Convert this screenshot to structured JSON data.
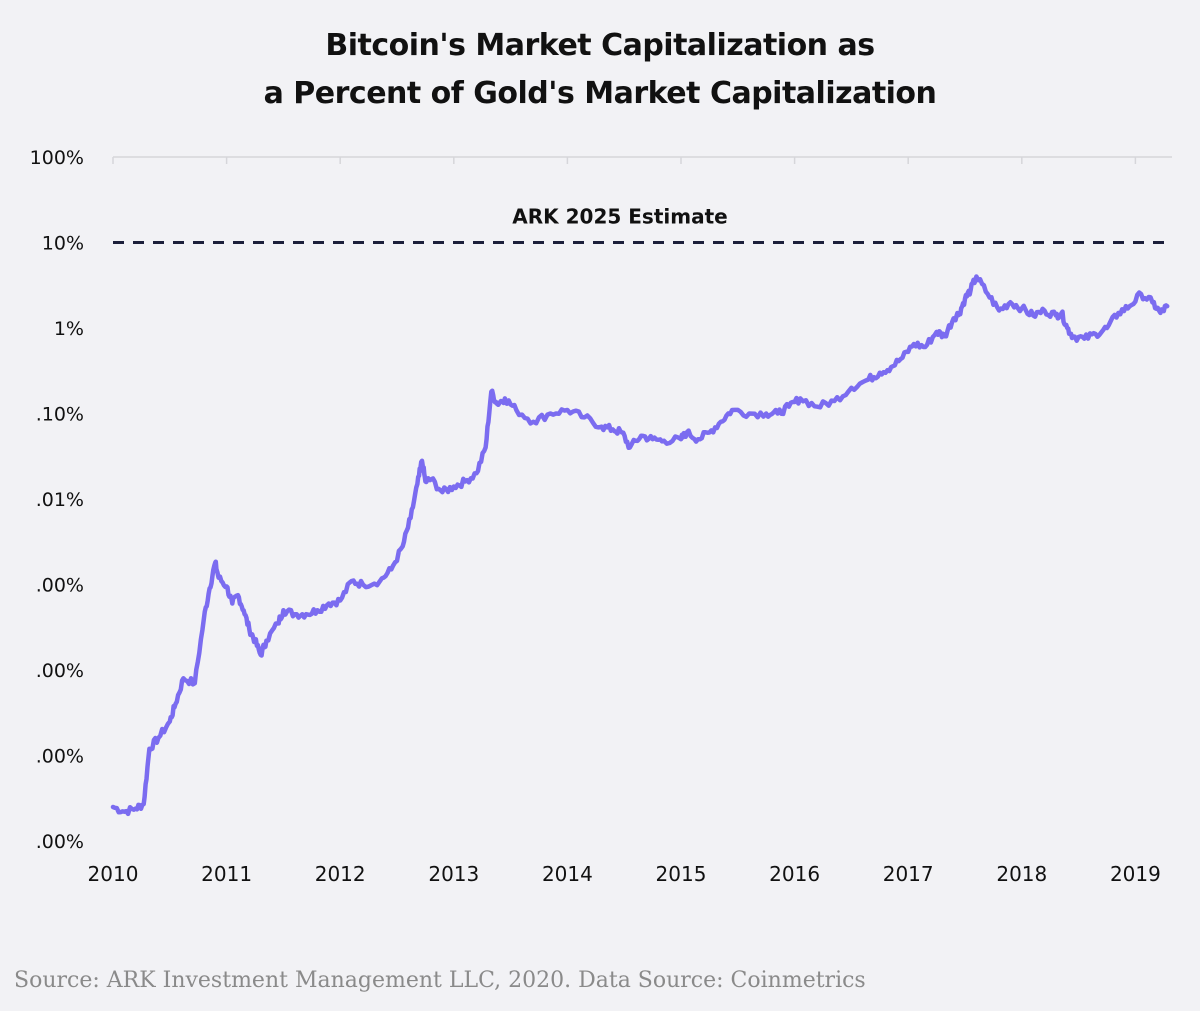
{
  "chart_data": {
    "type": "line",
    "title_line1": "Bitcoin's Market Capitalization as",
    "title_line2": "a Percent of Gold's Market Capitalization",
    "xlabel": "",
    "ylabel": "",
    "y_scale": "log",
    "ylim": [
      1e-06,
      100
    ],
    "xlim": [
      2010,
      2019.3
    ],
    "x_ticks": [
      2010,
      2011,
      2012,
      2013,
      2014,
      2015,
      2016,
      2017,
      2018,
      2019
    ],
    "x_tick_labels": [
      "2010",
      "2011",
      "2012",
      "2013",
      "2014",
      "2015",
      "2016",
      "2017",
      "2018",
      "2019"
    ],
    "y_ticks": [
      100,
      10,
      1,
      0.1,
      0.01,
      0.001,
      0.0001,
      1e-05,
      1e-06
    ],
    "y_tick_labels": [
      "100%",
      "10%",
      "1%",
      ".10%",
      ".01%",
      ".00%",
      ".00%",
      ".00%",
      ".00%"
    ],
    "series": [
      {
        "name": "Bitcoin market cap as % of gold market cap",
        "color": "#7b6cf0",
        "x": [
          2010.0,
          2010.1,
          2010.2,
          2010.27,
          2010.32,
          2010.4,
          2010.5,
          2010.55,
          2010.62,
          2010.72,
          2010.8,
          2010.85,
          2010.9,
          2010.93,
          2011.0,
          2011.05,
          2011.1,
          2011.15,
          2011.2,
          2011.25,
          2011.3,
          2011.35,
          2011.45,
          2011.5,
          2011.6,
          2011.7,
          2011.8,
          2011.9,
          2012.0,
          2012.1,
          2012.2,
          2012.35,
          2012.45,
          2012.55,
          2012.62,
          2012.68,
          2012.72,
          2012.75,
          2012.8,
          2012.9,
          2013.0,
          2013.1,
          2013.2,
          2013.28,
          2013.33,
          2013.38,
          2013.45,
          2013.55,
          2013.7,
          2013.85,
          2014.0,
          2014.15,
          2014.3,
          2014.4,
          2014.48,
          2014.55,
          2014.65,
          2014.75,
          2014.85,
          2015.0,
          2015.05,
          2015.15,
          2015.25,
          2015.35,
          2015.45,
          2015.6,
          2015.75,
          2015.85,
          2015.95,
          2016.05,
          2016.2,
          2016.35,
          2016.5,
          2016.65,
          2016.75,
          2016.85,
          2016.95,
          2017.05,
          2017.15,
          2017.25,
          2017.32,
          2017.4,
          2017.45,
          2017.5,
          2017.55,
          2017.6,
          2017.7,
          2017.8,
          2017.9,
          2018.0,
          2018.1,
          2018.2,
          2018.3,
          2018.35,
          2018.4,
          2018.45,
          2018.55,
          2018.65,
          2018.75,
          2018.85,
          2018.95,
          2019.05,
          2019.15,
          2019.22,
          2019.28
        ],
        "y": [
          2.5e-06,
          2.2e-06,
          2.4e-06,
          2.7e-06,
          1.2e-05,
          1.6e-05,
          2.5e-05,
          4e-05,
          8e-05,
          7e-05,
          0.0004,
          0.0009,
          0.0018,
          0.0012,
          0.00095,
          0.0006,
          0.00075,
          0.0005,
          0.0003,
          0.00022,
          0.00015,
          0.00022,
          0.00035,
          0.0005,
          0.00045,
          0.00045,
          0.0005,
          0.0006,
          0.00065,
          0.0011,
          0.001,
          0.0011,
          0.0015,
          0.0028,
          0.006,
          0.015,
          0.028,
          0.016,
          0.017,
          0.012,
          0.014,
          0.016,
          0.02,
          0.04,
          0.18,
          0.13,
          0.15,
          0.11,
          0.08,
          0.1,
          0.11,
          0.09,
          0.07,
          0.065,
          0.06,
          0.04,
          0.055,
          0.05,
          0.048,
          0.05,
          0.06,
          0.05,
          0.06,
          0.08,
          0.11,
          0.1,
          0.1,
          0.1,
          0.12,
          0.15,
          0.12,
          0.14,
          0.2,
          0.25,
          0.3,
          0.35,
          0.45,
          0.65,
          0.6,
          0.9,
          0.8,
          1.3,
          1.5,
          2.2,
          2.8,
          4.0,
          2.5,
          1.6,
          2.0,
          1.7,
          1.4,
          1.6,
          1.4,
          1.5,
          1.0,
          0.8,
          0.75,
          0.85,
          1.0,
          1.5,
          1.8,
          2.5,
          2.0,
          1.5,
          1.8
        ]
      }
    ],
    "reference_line": {
      "value": 10,
      "label": "ARK 2025 Estimate",
      "style": "dashed",
      "color": "#1c1f3a"
    }
  },
  "source_note": "Source: ARK Investment Management LLC, 2020. Data Source: Coinmetrics"
}
